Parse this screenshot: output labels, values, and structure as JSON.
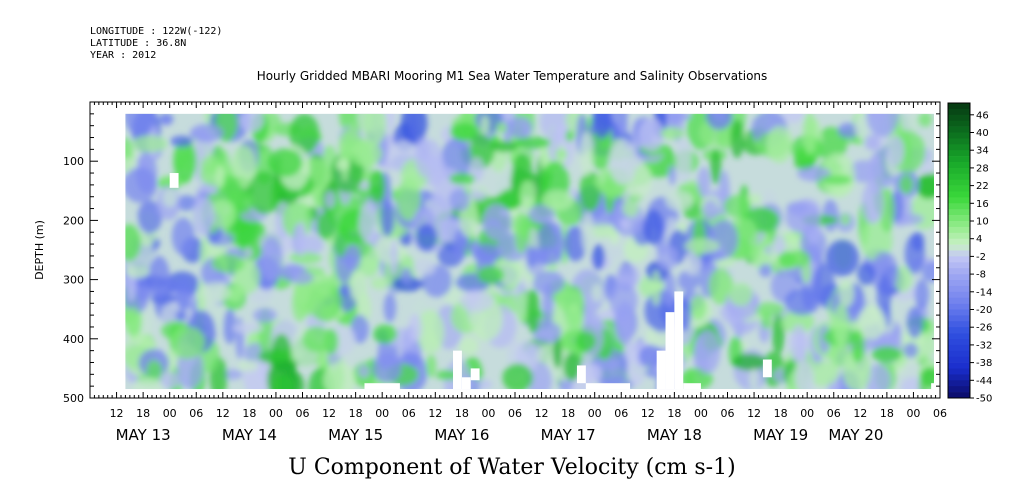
{
  "meta": {
    "longitude": "LONGITUDE : 122W(-122)",
    "latitude": "LATITUDE : 36.8N",
    "year": "YEAR : 2012"
  },
  "chart_data": {
    "type": "heatmap",
    "title": "Hourly Gridded MBARI Mooring M1 Sea Water Temperature and Salinity Observations",
    "xlabel": "U Component of Water Velocity (cm s-1)",
    "ylabel": "DEPTH (m)",
    "y_range": [
      0,
      500
    ],
    "y_ticks": [
      100,
      200,
      300,
      400,
      500
    ],
    "y_inverted": true,
    "x_start": "2012-05-13 00:00",
    "x_range_hours": [
      -18,
      174
    ],
    "hour_ticks": [
      {
        "h": -12,
        "label": "12"
      },
      {
        "h": -6,
        "label": "18"
      },
      {
        "h": 0,
        "label": "00"
      },
      {
        "h": 6,
        "label": "06"
      },
      {
        "h": 12,
        "label": "12"
      },
      {
        "h": 18,
        "label": "18"
      },
      {
        "h": 24,
        "label": "00"
      },
      {
        "h": 30,
        "label": "06"
      },
      {
        "h": 36,
        "label": "12"
      },
      {
        "h": 42,
        "label": "18"
      },
      {
        "h": 48,
        "label": "00"
      },
      {
        "h": 54,
        "label": "06"
      },
      {
        "h": 60,
        "label": "12"
      },
      {
        "h": 66,
        "label": "18"
      },
      {
        "h": 72,
        "label": "00"
      },
      {
        "h": 78,
        "label": "06"
      },
      {
        "h": 84,
        "label": "12"
      },
      {
        "h": 90,
        "label": "18"
      },
      {
        "h": 96,
        "label": "00"
      },
      {
        "h": 102,
        "label": "06"
      },
      {
        "h": 108,
        "label": "12"
      },
      {
        "h": 114,
        "label": "18"
      },
      {
        "h": 120,
        "label": "00"
      },
      {
        "h": 126,
        "label": "06"
      },
      {
        "h": 132,
        "label": "12"
      },
      {
        "h": 138,
        "label": "18"
      },
      {
        "h": 144,
        "label": "00"
      },
      {
        "h": 150,
        "label": "06"
      },
      {
        "h": 156,
        "label": "12"
      },
      {
        "h": 162,
        "label": "18"
      },
      {
        "h": 168,
        "label": "00"
      },
      {
        "h": 174,
        "label": "06"
      }
    ],
    "day_labels": [
      {
        "h": -6,
        "label": "MAY 13"
      },
      {
        "h": 18,
        "label": "MAY 14"
      },
      {
        "h": 42,
        "label": "MAY 15"
      },
      {
        "h": 66,
        "label": "MAY 16"
      },
      {
        "h": 90,
        "label": "MAY 17"
      },
      {
        "h": 114,
        "label": "MAY 18"
      },
      {
        "h": 138,
        "label": "MAY 19"
      },
      {
        "h": 155,
        "label": "MAY 20"
      }
    ],
    "data_extent": {
      "hour_start": -10,
      "hour_end": 176,
      "depth_top": 20,
      "depth_bottom": 485
    },
    "colorbar": {
      "min": -50,
      "max": 50,
      "step": 2,
      "labels": [
        "46",
        "40",
        "34",
        "28",
        "22",
        "16",
        "10",
        "4",
        "-2",
        "-8",
        "-14",
        "-20",
        "-26",
        "-32",
        "-38",
        "-44",
        "-50"
      ],
      "colors": [
        {
          "v": -50,
          "c": "#0a0a66"
        },
        {
          "v": -40,
          "c": "#1a2dcc"
        },
        {
          "v": -28,
          "c": "#3050e0"
        },
        {
          "v": -18,
          "c": "#6f80ee"
        },
        {
          "v": -8,
          "c": "#a0a8f2"
        },
        {
          "v": -2,
          "c": "#c4c8f4"
        },
        {
          "v": 2,
          "c": "#c8f0c4"
        },
        {
          "v": 8,
          "c": "#94ec8c"
        },
        {
          "v": 18,
          "c": "#3ad83a"
        },
        {
          "v": 30,
          "c": "#18a82a"
        },
        {
          "v": 40,
          "c": "#0c6e1e"
        },
        {
          "v": 50,
          "c": "#063812"
        }
      ]
    },
    "gaps": [
      {
        "h0": -10,
        "h1": 176,
        "d0": 485,
        "d1": 500
      },
      {
        "h0": 0,
        "h1": 2,
        "d0": 120,
        "d1": 145
      },
      {
        "h0": 44,
        "h1": 52,
        "d0": 475,
        "d1": 485
      },
      {
        "h0": 64,
        "h1": 66,
        "d0": 420,
        "d1": 485
      },
      {
        "h0": 66,
        "h1": 68,
        "d0": 465,
        "d1": 485
      },
      {
        "h0": 68,
        "h1": 70,
        "d0": 450,
        "d1": 470
      },
      {
        "h0": 92,
        "h1": 94,
        "d0": 445,
        "d1": 475
      },
      {
        "h0": 94,
        "h1": 104,
        "d0": 475,
        "d1": 485
      },
      {
        "h0": 110,
        "h1": 112,
        "d0": 420,
        "d1": 485
      },
      {
        "h0": 112,
        "h1": 114,
        "d0": 355,
        "d1": 485
      },
      {
        "h0": 114,
        "h1": 116,
        "d0": 320,
        "d1": 485
      },
      {
        "h0": 116,
        "h1": 120,
        "d0": 475,
        "d1": 485
      },
      {
        "h0": 134,
        "h1": 136,
        "d0": 435,
        "d1": 465
      },
      {
        "h0": 172,
        "h1": 176,
        "d0": 475,
        "d1": 485
      }
    ],
    "blob_seed": 20120513
  }
}
